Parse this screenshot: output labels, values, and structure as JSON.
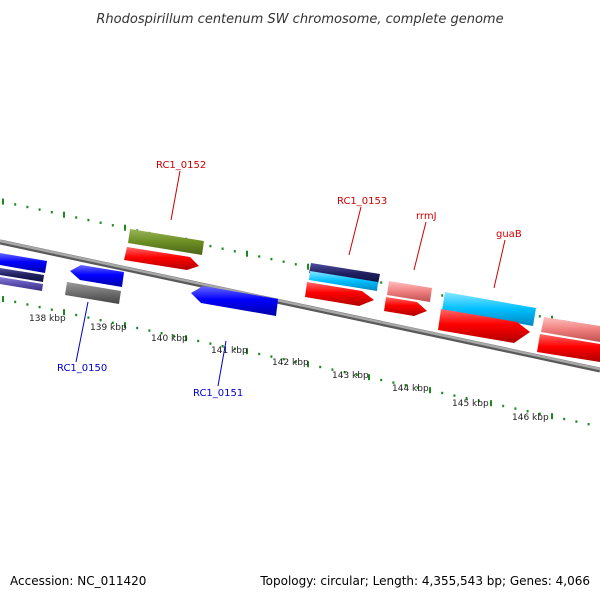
{
  "title": "Rhodospirillum centenum SW chromosome, complete genome",
  "footer": {
    "accession": "Accession: NC_011420",
    "topology": "Topology: circular; Length: 4,355,543 bp; Genes: 4,066"
  },
  "colors": {
    "backbone": "#8c8c8c",
    "tick": "#1a8a1a",
    "label_red": "#cc0000",
    "label_blue": "#0000cc"
  },
  "scale": {
    "labels": [
      "138 kbp",
      "139 kbp",
      "140 kbp",
      "141 kbp",
      "142 kbp",
      "143 kbp",
      "144 kbp",
      "145 kbp",
      "146 kbp"
    ]
  },
  "labels": [
    {
      "name": "RC1_0152",
      "color": "#cc0000"
    },
    {
      "name": "RC1_0153",
      "color": "#cc0000"
    },
    {
      "name": "rrmJ",
      "color": "#cc0000"
    },
    {
      "name": "guaB",
      "color": "#cc0000"
    },
    {
      "name": "RC1_0150",
      "color": "#0000cc"
    },
    {
      "name": "RC1_0151",
      "color": "#0000cc"
    }
  ]
}
